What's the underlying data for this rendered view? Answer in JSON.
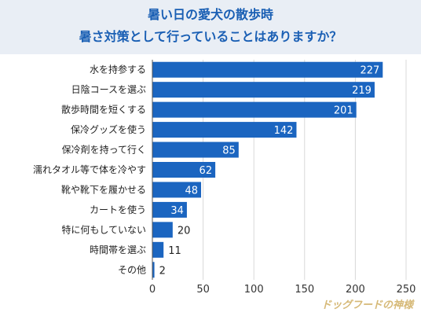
{
  "header": {
    "title_line1": "暑い日の愛犬の散歩時",
    "title_line2": "暑さ対策として行っていることはありますか？"
  },
  "colors": {
    "bar": "#1b65c0",
    "header_bg": "#e9eef5",
    "title": "#1a5fb4"
  },
  "watermark": "ドッグフードの神様",
  "chart_data": {
    "type": "bar",
    "orientation": "horizontal",
    "categories": [
      "水を持参する",
      "日陰コースを選ぶ",
      "散歩時間を短くする",
      "保冷グッズを使う",
      "保冷剤を持って行く",
      "濡れタオル等で体を冷やす",
      "靴や靴下を履かせる",
      "カートを使う",
      "特に何もしていない",
      "時間帯を選ぶ",
      "その他"
    ],
    "values": [
      227,
      219,
      201,
      142,
      85,
      62,
      48,
      34,
      20,
      11,
      2
    ],
    "xlim": [
      0,
      250
    ],
    "xticks": [
      0,
      50,
      100,
      150,
      200,
      250
    ],
    "grid": true,
    "title": "暑い日の愛犬の散歩時 暑さ対策として行っていることはありますか？"
  }
}
